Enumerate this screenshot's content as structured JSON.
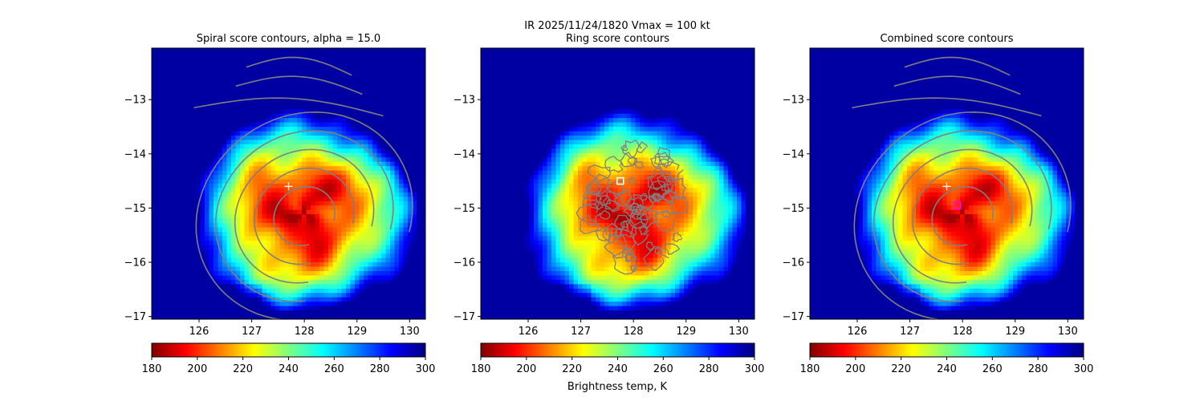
{
  "figure": {
    "suptitle_line1": "IR  2025/11/24/1820    Vmax = 100 kt",
    "colorbar_label": "Brightness temp, K"
  },
  "chart_data": [
    {
      "type": "heatmap",
      "title": "Spiral score contours, alpha = 15.0",
      "xlim": [
        125.1,
        130.3
      ],
      "ylim": [
        -17.05,
        -12.05
      ],
      "x_ticks": [
        "126",
        "127",
        "128",
        "129",
        "130"
      ],
      "y_ticks": [
        "−13",
        "−14",
        "−15",
        "−16",
        "−17"
      ],
      "colorbar": {
        "colormap": "jet_r",
        "range": [
          180,
          300
        ],
        "ticks": [
          "180",
          "200",
          "220",
          "240",
          "260",
          "280",
          "300"
        ]
      },
      "markers": [
        {
          "symbol": "+",
          "color": "#ffffff",
          "x": 127.7,
          "y": -14.6
        }
      ],
      "contour_color": "#808080",
      "grid": false
    },
    {
      "type": "heatmap",
      "title": "Ring score contours",
      "xlim": [
        125.1,
        130.3
      ],
      "ylim": [
        -17.05,
        -12.05
      ],
      "x_ticks": [
        "126",
        "127",
        "128",
        "129",
        "130"
      ],
      "y_ticks": [
        "−13",
        "−14",
        "−15",
        "−16",
        "−17"
      ],
      "colorbar": {
        "colormap": "jet_r",
        "range": [
          180,
          300
        ],
        "ticks": [
          "180",
          "200",
          "220",
          "240",
          "260",
          "280",
          "300"
        ]
      },
      "markers": [
        {
          "symbol": "square",
          "color": "#ffffff",
          "x": 127.75,
          "y": -14.5
        }
      ],
      "contour_color": "#808080",
      "grid": false
    },
    {
      "type": "heatmap",
      "title": "Combined score contours",
      "xlim": [
        125.1,
        130.3
      ],
      "ylim": [
        -17.05,
        -12.05
      ],
      "x_ticks": [
        "126",
        "127",
        "128",
        "129",
        "130"
      ],
      "y_ticks": [
        "−13",
        "−14",
        "−15",
        "−16",
        "−17"
      ],
      "colorbar": {
        "colormap": "jet_r",
        "range": [
          180,
          300
        ],
        "ticks": [
          "180",
          "200",
          "220",
          "240",
          "260",
          "280",
          "300"
        ]
      },
      "markers": [
        {
          "symbol": "+",
          "color": "#ffffff",
          "x": 127.7,
          "y": -14.6
        },
        {
          "symbol": "square",
          "color": "#ff00ff",
          "x": 127.9,
          "y": -14.95
        }
      ],
      "contour_color": "#808080",
      "grid": false
    }
  ]
}
